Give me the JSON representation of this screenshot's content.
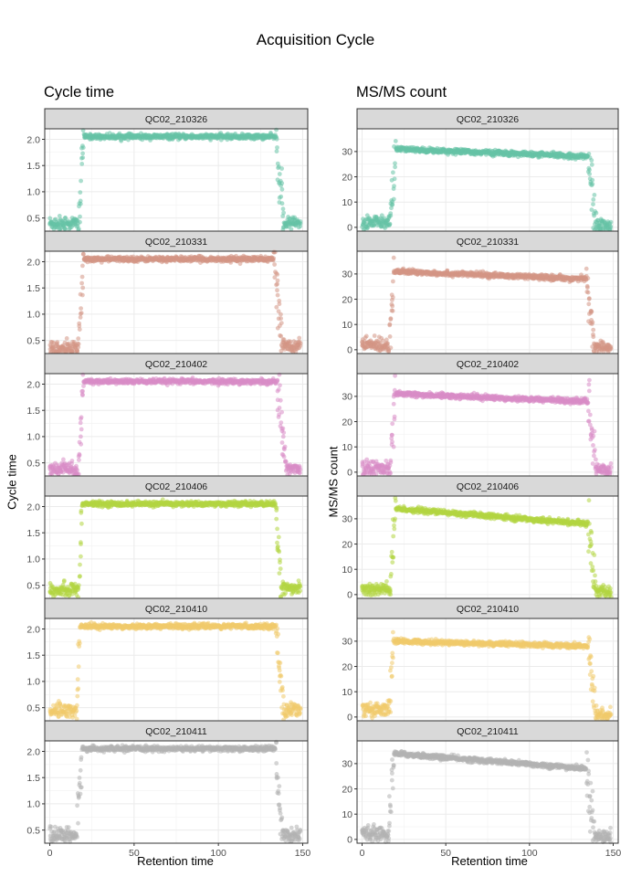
{
  "title": "Acquisition Cycle",
  "columns": [
    {
      "subtitle": "Cycle time",
      "ylabel": "Cycle time",
      "xlabel": "Retention time"
    },
    {
      "subtitle": "MS/MS count",
      "ylabel": "MS/MS count",
      "xlabel": "Retention time"
    }
  ],
  "chart_data": [
    {
      "type": "scatter",
      "title": "Cycle time",
      "xlabel": "Retention time",
      "ylabel": "Cycle time",
      "xlim": [
        -3,
        153
      ],
      "ylim": [
        0.25,
        2.2
      ],
      "x_ticks": [
        0,
        50,
        100,
        150
      ],
      "y_ticks": [
        0.5,
        1.0,
        1.5,
        2.0
      ],
      "y_tick_labels": [
        "0.5",
        "1.0",
        "1.5",
        "2.0"
      ],
      "grid": true,
      "facets": [
        "QC02_210326",
        "QC02_210331",
        "QC02_210402",
        "QC02_210406",
        "QC02_210410",
        "QC02_210411"
      ],
      "series": [
        {
          "name": "QC02_210326",
          "color": "#66c2a5",
          "profile": {
            "baseline": 0.4,
            "rise_start": 17,
            "rise_end": 20,
            "plateau_start": 2.05,
            "plateau_end": 2.05,
            "fall_start": 134,
            "fall_end": 139,
            "tail": 0.4,
            "x_max": 149
          }
        },
        {
          "name": "QC02_210331",
          "color": "#d49585",
          "profile": {
            "baseline": 0.35,
            "rise_start": 17,
            "rise_end": 20,
            "plateau_start": 2.05,
            "plateau_end": 2.05,
            "fall_start": 133,
            "fall_end": 138,
            "tail": 0.4,
            "x_max": 149
          }
        },
        {
          "name": "QC02_210402",
          "color": "#d98cc7",
          "profile": {
            "baseline": 0.38,
            "rise_start": 17,
            "rise_end": 20,
            "plateau_start": 2.05,
            "plateau_end": 2.05,
            "fall_start": 135,
            "fall_end": 140,
            "tail": 0.4,
            "x_max": 149
          }
        },
        {
          "name": "QC02_210406",
          "color": "#b3d641",
          "profile": {
            "baseline": 0.42,
            "rise_start": 17,
            "rise_end": 19,
            "plateau_start": 2.05,
            "plateau_end": 2.05,
            "fall_start": 134,
            "fall_end": 137,
            "tail": 0.45,
            "x_max": 149
          }
        },
        {
          "name": "QC02_210410",
          "color": "#f0ca6b",
          "profile": {
            "baseline": 0.45,
            "rise_start": 16,
            "rise_end": 18,
            "plateau_start": 2.05,
            "plateau_end": 2.05,
            "fall_start": 134,
            "fall_end": 139,
            "tail": 0.45,
            "x_max": 149
          }
        },
        {
          "name": "QC02_210411",
          "color": "#b3b3b3",
          "profile": {
            "baseline": 0.4,
            "rise_start": 16,
            "rise_end": 19,
            "plateau_start": 2.05,
            "plateau_end": 2.05,
            "fall_start": 134,
            "fall_end": 138,
            "tail": 0.4,
            "x_max": 149
          }
        }
      ]
    },
    {
      "type": "scatter",
      "title": "MS/MS count",
      "xlabel": "Retention time",
      "ylabel": "MS/MS count",
      "xlim": [
        -3,
        153
      ],
      "ylim": [
        -1.5,
        39
      ],
      "x_ticks": [
        0,
        50,
        100,
        150
      ],
      "y_ticks": [
        0,
        10,
        20,
        30
      ],
      "y_tick_labels": [
        "0",
        "10",
        "20",
        "30"
      ],
      "grid": true,
      "facets": [
        "QC02_210326",
        "QC02_210331",
        "QC02_210402",
        "QC02_210406",
        "QC02_210410",
        "QC02_210411"
      ],
      "series": [
        {
          "name": "QC02_210326",
          "color": "#66c2a5",
          "profile": {
            "baseline": 2,
            "rise_start": 17,
            "rise_end": 20,
            "plateau_start": 31,
            "plateau_end": 28,
            "fall_start": 135,
            "fall_end": 140,
            "tail": 1,
            "x_max": 149
          }
        },
        {
          "name": "QC02_210331",
          "color": "#d49585",
          "profile": {
            "baseline": 2,
            "rise_start": 16,
            "rise_end": 19,
            "plateau_start": 31,
            "plateau_end": 28,
            "fall_start": 134,
            "fall_end": 139,
            "tail": 1,
            "x_max": 149
          }
        },
        {
          "name": "QC02_210402",
          "color": "#d98cc7",
          "profile": {
            "baseline": 1.5,
            "rise_start": 17,
            "rise_end": 20,
            "plateau_start": 31,
            "plateau_end": 28,
            "fall_start": 135,
            "fall_end": 140,
            "tail": 1,
            "x_max": 149
          }
        },
        {
          "name": "QC02_210406",
          "color": "#b3d641",
          "profile": {
            "baseline": 2,
            "rise_start": 17,
            "rise_end": 20,
            "plateau_start": 34,
            "plateau_end": 28,
            "fall_start": 135,
            "fall_end": 140,
            "tail": 1,
            "x_max": 149
          }
        },
        {
          "name": "QC02_210410",
          "color": "#f0ca6b",
          "profile": {
            "baseline": 3,
            "rise_start": 16,
            "rise_end": 19,
            "plateau_start": 30,
            "plateau_end": 28,
            "fall_start": 135,
            "fall_end": 140,
            "tail": 1,
            "x_max": 149
          }
        },
        {
          "name": "QC02_210411",
          "color": "#b3b3b3",
          "profile": {
            "baseline": 2,
            "rise_start": 16,
            "rise_end": 19,
            "plateau_start": 34,
            "plateau_end": 28,
            "fall_start": 134,
            "fall_end": 139,
            "tail": 1,
            "x_max": 149
          }
        }
      ]
    }
  ]
}
